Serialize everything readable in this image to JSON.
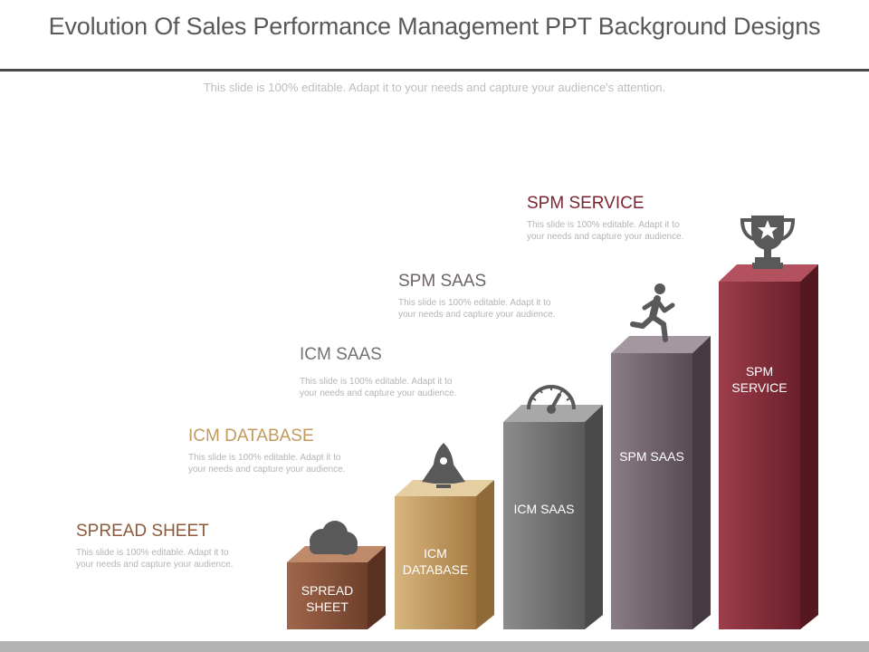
{
  "title": "Evolution Of Sales Performance Management PPT Background Designs",
  "subtitle": "This slide is 100% editable. Adapt it to your needs and capture your audience's attention.",
  "stages": [
    {
      "heading": "SPREAD SHEET",
      "description": "This slide is 100% editable. Adapt it to your needs and capture your audience.",
      "bar_label_lines": [
        "SPREAD",
        "SHEET"
      ],
      "icon": "cloud-icon",
      "heading_color": "#8b5a3c",
      "bar_color": "#7b4a32"
    },
    {
      "heading": "ICM DATABASE",
      "description": "This slide is 100% editable. Adapt it to your needs and capture your audience.",
      "bar_label_lines": [
        "ICM",
        "DATABASE"
      ],
      "icon": "rocket-icon",
      "heading_color": "#c29a5c",
      "bar_color": "#b68b52"
    },
    {
      "heading": "ICM SAAS",
      "description": "This slide is 100% editable. Adapt it to your needs and capture your audience.",
      "bar_label_lines": [
        "ICM SAAS"
      ],
      "icon": "speedometer-icon",
      "heading_color": "#737373",
      "bar_color": "#6b6b6b"
    },
    {
      "heading": "SPM SAAS",
      "description": "This slide is 100% editable. Adapt it to your needs and capture your audience.",
      "bar_label_lines": [
        "SPM SAAS"
      ],
      "icon": "runner-icon",
      "heading_color": "#6e6468",
      "bar_color": "#6a5c64"
    },
    {
      "heading": "SPM SERVICE",
      "description": "This slide is 100% editable. Adapt it to your needs and capture your audience.",
      "bar_label_lines": [
        "SPM",
        "SERVICE"
      ],
      "icon": "trophy-icon",
      "heading_color": "#7a2632",
      "bar_color": "#7a2632"
    }
  ]
}
